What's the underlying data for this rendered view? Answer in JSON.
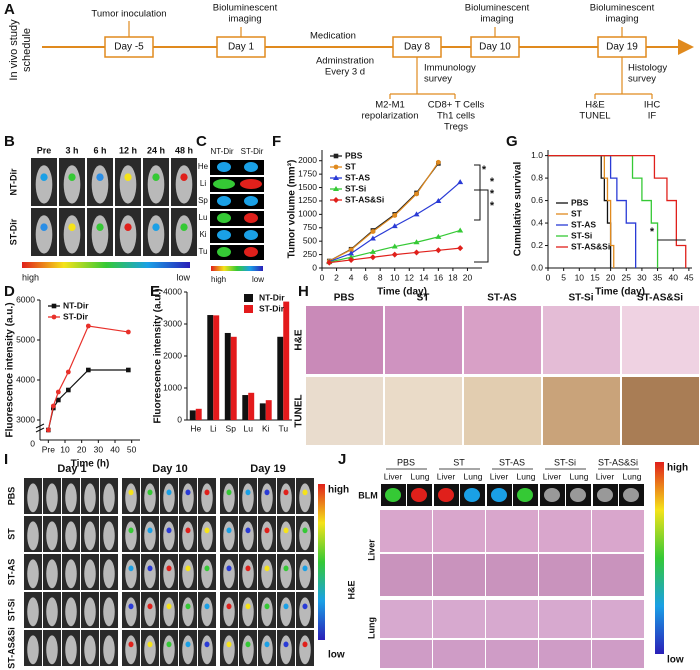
{
  "panel_labels": [
    "A",
    "B",
    "C",
    "D",
    "E",
    "F",
    "G",
    "H",
    "I",
    "J"
  ],
  "schedule": {
    "title": [
      "In vivo study",
      "schedule"
    ],
    "days": [
      "Day -5",
      "Day 1",
      "Day 8",
      "Day 10",
      "Day 19"
    ],
    "events": [
      [
        "Tumor inoculation"
      ],
      [
        "Bioluminescent",
        "imaging"
      ],
      [
        "Medication"
      ],
      [
        "Adminstration",
        "Every 3 d"
      ],
      [
        "Bioluminescent",
        "imaging"
      ],
      [
        "Bioluminescent",
        "imaging"
      ],
      [
        "Immunology",
        "survey"
      ],
      [
        "Histology",
        "survey"
      ],
      [
        "M2-M1",
        "repolarization"
      ],
      [
        "CD8+ T Cells",
        "Th1 cells",
        "Tregs"
      ],
      [
        "H&E",
        "TUNEL"
      ],
      [
        "IHC",
        "IF"
      ]
    ]
  },
  "imaging_b": {
    "times": [
      "Pre",
      "3 h",
      "6 h",
      "12 h",
      "24 h",
      "48 h"
    ],
    "rows": [
      "NT-Dir",
      "ST-Dir"
    ],
    "scale": [
      "high",
      "low"
    ]
  },
  "imaging_c": {
    "groups": [
      "NT-Dir",
      "ST-Dir"
    ],
    "organs": [
      "He",
      "Li",
      "Sp",
      "Lu",
      "Ki",
      "Tu"
    ],
    "scale": [
      "high",
      "low"
    ]
  },
  "histology_h": {
    "groups": [
      "PBS",
      "ST",
      "ST-AS",
      "ST-Si",
      "ST-AS&Si"
    ],
    "rows": [
      "H&E",
      "TUNEL"
    ]
  },
  "imaging_i": {
    "days": [
      "Day 1",
      "Day 10",
      "Day 19"
    ],
    "groups": [
      "PBS",
      "ST",
      "ST-AS",
      "ST-Si",
      "ST-AS&Si"
    ],
    "scale": [
      "high",
      "low"
    ]
  },
  "panel_j": {
    "groups": [
      "PBS",
      "ST",
      "ST-AS",
      "ST-Si",
      "ST-AS&Si"
    ],
    "organs": [
      "Liver",
      "Lung"
    ],
    "rows": [
      "BLM",
      "Liver",
      "Lung"
    ],
    "stain": "H&E",
    "scale": [
      "high",
      "low"
    ]
  },
  "chart_data": [
    {
      "type": "line",
      "xlabel": "Time (h)",
      "ylabel": "Fluorescence intensity (a.u.)",
      "x": [
        0,
        3,
        6,
        12,
        24,
        48
      ],
      "xlim": [
        -5,
        55
      ],
      "xticks": [
        {
          "value": 0,
          "label": "Pre"
        },
        10,
        20,
        30,
        40,
        50
      ],
      "ylim": [
        2500,
        6000
      ],
      "yticks": [
        3000,
        4000,
        5000,
        6000
      ],
      "y_break_label": "0",
      "legend": "upper left",
      "series": [
        {
          "name": "NT-Dir",
          "color": "#111111",
          "values": [
            2750,
            3300,
            3500,
            3750,
            4250,
            4250
          ]
        },
        {
          "name": "ST-Dir",
          "color": "#e8302a",
          "values": [
            2750,
            3350,
            3700,
            4200,
            5350,
            5200
          ]
        }
      ]
    },
    {
      "type": "bar",
      "ylabel": "Fluorescence intensity (a.u.)",
      "categories": [
        "He",
        "Li",
        "Sp",
        "Lu",
        "Ki",
        "Tu"
      ],
      "ylim": [
        0,
        4000
      ],
      "yticks": [
        0,
        1000,
        2000,
        3000,
        4000
      ],
      "legend": "upper right",
      "series": [
        {
          "name": "NT-Dir",
          "color": "#111111",
          "values": [
            300,
            3280,
            2720,
            780,
            520,
            2600
          ]
        },
        {
          "name": "ST-Dir",
          "color": "#e31a1c",
          "values": [
            350,
            3270,
            2600,
            850,
            620,
            3700
          ]
        }
      ]
    },
    {
      "type": "line",
      "xlabel": "Time (day)",
      "ylabel": "Tumor volume (mm³)",
      "x": [
        1,
        4,
        7,
        10,
        13,
        16,
        19
      ],
      "xlim": [
        0,
        22
      ],
      "xticks": [
        0,
        2,
        4,
        6,
        8,
        10,
        12,
        14,
        16,
        18,
        20
      ],
      "ylim": [
        0,
        2200
      ],
      "yticks": [
        0,
        250,
        500,
        750,
        1000,
        1250,
        1500,
        1750,
        2000
      ],
      "legend": "upper left",
      "annotations": [
        "*",
        "*",
        "*",
        "*"
      ],
      "series": [
        {
          "name": "PBS",
          "color": "#222222",
          "values": [
            130,
            350,
            700,
            1000,
            1400,
            1950,
            null
          ]
        },
        {
          "name": "ST",
          "color": "#e08a1e",
          "values": [
            130,
            340,
            680,
            980,
            1380,
            1970,
            null
          ]
        },
        {
          "name": "ST-AS",
          "color": "#2a3bd6",
          "values": [
            120,
            270,
            550,
            780,
            1000,
            1250,
            1600
          ]
        },
        {
          "name": "ST-Si",
          "color": "#35c935",
          "values": [
            110,
            200,
            300,
            400,
            480,
            580,
            700
          ]
        },
        {
          "name": "ST-AS&Si",
          "color": "#e0201b",
          "values": [
            100,
            150,
            200,
            250,
            290,
            330,
            370
          ]
        }
      ]
    },
    {
      "type": "step",
      "xlabel": "Time (day)",
      "ylabel": "Cumulative survival",
      "xlim": [
        0,
        46
      ],
      "xticks": [
        0,
        5,
        10,
        15,
        20,
        25,
        30,
        35,
        40,
        45
      ],
      "ylim": [
        0,
        1.05
      ],
      "yticks": [
        {
          "value": 0,
          "label": "0.0"
        },
        0.2,
        0.4,
        0.6,
        0.8,
        {
          "value": 1,
          "label": "1.0"
        }
      ],
      "legend": "lower left",
      "annotations": [
        "*"
      ],
      "series": [
        {
          "name": "PBS",
          "color": "#111111",
          "x": [
            0,
            17,
            18,
            19,
            20
          ],
          "values": [
            1,
            0.8,
            0.6,
            0.4,
            0
          ]
        },
        {
          "name": "ST",
          "color": "#e08a1e",
          "x": [
            0,
            18,
            19,
            20,
            21
          ],
          "values": [
            1,
            0.8,
            0.6,
            0.2,
            0
          ]
        },
        {
          "name": "ST-AS",
          "color": "#2a3bd6",
          "x": [
            0,
            20,
            22,
            25,
            28
          ],
          "values": [
            1,
            0.8,
            0.6,
            0.4,
            0
          ]
        },
        {
          "name": "ST-Si",
          "color": "#35c935",
          "x": [
            0,
            27,
            30,
            33,
            35
          ],
          "values": [
            1,
            0.8,
            0.6,
            0.4,
            0
          ]
        },
        {
          "name": "ST-AS&Si",
          "color": "#e0201b",
          "x": [
            0,
            34,
            38,
            41,
            44
          ],
          "values": [
            1,
            0.8,
            0.6,
            0.2,
            0
          ]
        }
      ]
    }
  ]
}
